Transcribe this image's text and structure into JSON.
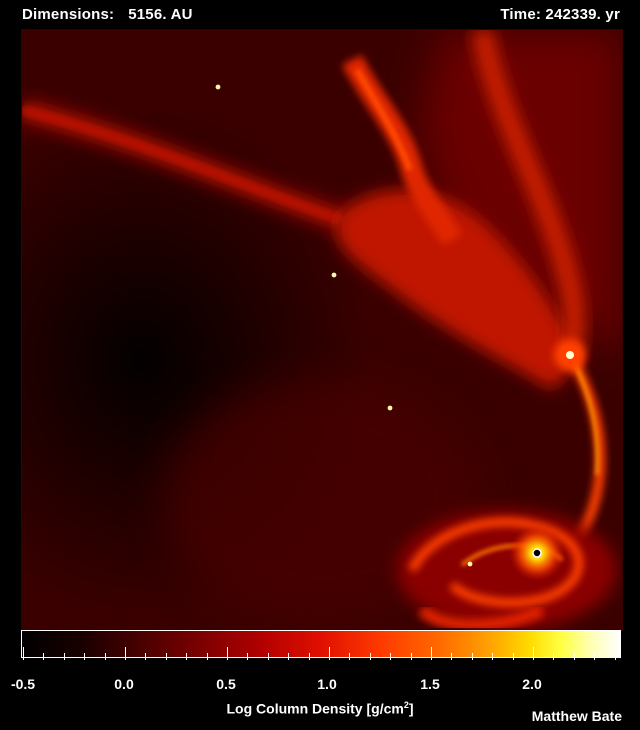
{
  "header": {
    "dimensions_label": "Dimensions:",
    "dimensions_value": "5156. AU",
    "time_label": "Time: 242339. yr"
  },
  "colorbar": {
    "tick_labels": [
      "-0.5",
      "0.0",
      "0.5",
      "1.0",
      "1.5",
      "2.0"
    ],
    "title_prefix": "Log Column Density [g/cm",
    "title_sup": "2",
    "title_suffix": "]",
    "colors": [
      "#000000",
      "#7d0000",
      "#e01000",
      "#ff6a00",
      "#ffdc00",
      "#ffffff"
    ]
  },
  "credit": "Matthew Bate",
  "scene": {
    "background": "#1a0000",
    "stars": 6
  }
}
